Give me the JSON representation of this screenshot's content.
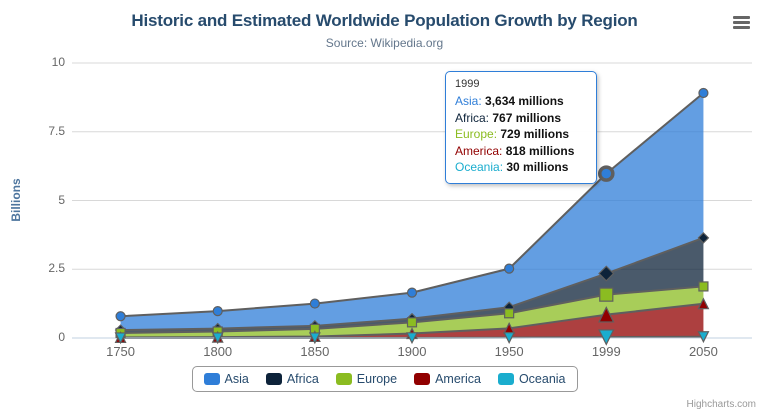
{
  "header": {
    "title": "Historic and Estimated Worldwide Population Growth by Region",
    "subtitle": "Source: Wikipedia.org"
  },
  "y_axis": {
    "title": "Billions",
    "ticks": [
      "0",
      "2.5",
      "5",
      "7.5",
      "10"
    ]
  },
  "x_axis": {
    "categories": [
      "1750",
      "1800",
      "1850",
      "1900",
      "1950",
      "1999",
      "2050"
    ]
  },
  "legend": {
    "items": [
      {
        "label": "Asia",
        "color": "#2f7ed8"
      },
      {
        "label": "Africa",
        "color": "#0d233a"
      },
      {
        "label": "Europe",
        "color": "#8bbc21"
      },
      {
        "label": "America",
        "color": "#910000"
      },
      {
        "label": "Oceania",
        "color": "#1aadce"
      }
    ]
  },
  "tooltip": {
    "header": "1999",
    "rows": [
      {
        "label": "Asia",
        "value": "3,634 millions",
        "color": "#2f7ed8"
      },
      {
        "label": "Africa",
        "value": "767 millions",
        "color": "#0d233a"
      },
      {
        "label": "Europe",
        "value": "729 millions",
        "color": "#8bbc21"
      },
      {
        "label": "America",
        "value": "818 millions",
        "color": "#910000"
      },
      {
        "label": "Oceania",
        "value": "30 millions",
        "color": "#1aadce"
      }
    ]
  },
  "credit": "Highcharts.com",
  "colors": {
    "grid": "#d8d8d8",
    "axis_line": "#c0d0e0",
    "series_edge": "#5f5f5f",
    "text_muted": "#666666"
  },
  "chart_data": {
    "type": "area",
    "stacking": "normal",
    "title": "Historic and Estimated Worldwide Population Growth by Region",
    "subtitle": "Source: Wikipedia.org",
    "xlabel": "",
    "ylabel": "Billions",
    "unit": "millions",
    "ylim_billions": [
      0,
      10
    ],
    "yticks_billions": [
      0,
      2.5,
      5,
      7.5,
      10
    ],
    "grid": true,
    "legend_position": "bottom",
    "hovered_category": "1999",
    "hovered_category_index": 5,
    "fill_opacity": 0.75,
    "categories": [
      "1750",
      "1800",
      "1850",
      "1900",
      "1950",
      "1999",
      "2050"
    ],
    "series": [
      {
        "name": "Asia",
        "color": "#2f7ed8",
        "marker": "circle",
        "values": [
          502,
          635,
          809,
          947,
          1402,
          3634,
          5268
        ]
      },
      {
        "name": "Africa",
        "color": "#0d233a",
        "marker": "diamond",
        "values": [
          106,
          107,
          111,
          133,
          221,
          767,
          1766
        ]
      },
      {
        "name": "Europe",
        "color": "#8bbc21",
        "marker": "square",
        "values": [
          163,
          203,
          276,
          408,
          547,
          729,
          628
        ]
      },
      {
        "name": "America",
        "color": "#910000",
        "marker": "triangle-up",
        "values": [
          18,
          31,
          54,
          156,
          339,
          818,
          1201
        ]
      },
      {
        "name": "Oceania",
        "color": "#1aadce",
        "marker": "triangle-down",
        "values": [
          2,
          2,
          2,
          6,
          13,
          30,
          46
        ]
      }
    ],
    "stacked_totals_millions": [
      791,
      978,
      1252,
      1650,
      2522,
      5978,
      8909
    ]
  }
}
